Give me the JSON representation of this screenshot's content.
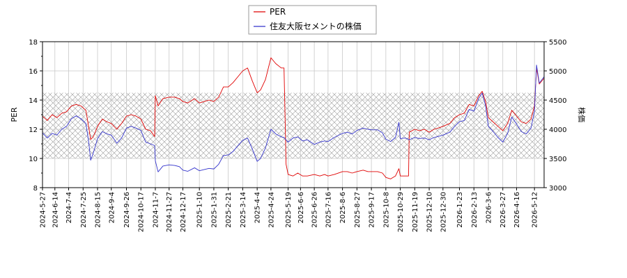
{
  "chart_data": {
    "type": "line",
    "title": "",
    "xlabel": "",
    "ylabel_left": "PER",
    "ylabel_right": "株価",
    "y_left_range": [
      8,
      18
    ],
    "y_left_ticks": [
      "8",
      "10",
      "12",
      "14",
      "16",
      "18"
    ],
    "y_right_range": [
      3000,
      5500
    ],
    "y_right_ticks": [
      "3000",
      "3500",
      "4000",
      "4500",
      "5000",
      "5500"
    ],
    "grid": true,
    "legend_position": "top-center",
    "shaded_band": {
      "axis": "left",
      "from": 10,
      "to": 14.5,
      "pattern": "crosshatch"
    },
    "x_range": [
      "2024-05-27",
      "2026-05-26"
    ],
    "x_ticks": [
      "2024-5-27",
      "2024-6-14",
      "2024-7-4",
      "2024-7-25",
      "2024-8-15",
      "2024-9-4",
      "2024-9-26",
      "2024-10-17",
      "2024-11-7",
      "2024-11-27",
      "2024-12-17",
      "2025-1-10",
      "2025-1-31",
      "2025-2-21",
      "2025-3-14",
      "2025-4-4",
      "2025-4-24",
      "2025-5-19",
      "2025-6-6",
      "2025-6-26",
      "2025-7-16",
      "2025-8-6",
      "2025-8-27",
      "2025-9-17",
      "2025-10-8",
      "2025-10-29",
      "2025-11-19",
      "2025-12-10",
      "2025-12-30",
      "2026-1-23",
      "2026-2-13",
      "2026-3-6",
      "2026-3-27",
      "2026-4-16",
      "2026-5-12"
    ],
    "series": [
      {
        "name": "PER",
        "axis": "left",
        "color": "#e00000",
        "points": [
          [
            "2024-05-27",
            12.9
          ],
          [
            "2024-06-03",
            12.6
          ],
          [
            "2024-06-10",
            13.0
          ],
          [
            "2024-06-17",
            12.8
          ],
          [
            "2024-06-24",
            13.1
          ],
          [
            "2024-07-01",
            13.2
          ],
          [
            "2024-07-08",
            13.6
          ],
          [
            "2024-07-15",
            13.7
          ],
          [
            "2024-07-22",
            13.6
          ],
          [
            "2024-07-29",
            13.3
          ],
          [
            "2024-08-02",
            12.2
          ],
          [
            "2024-08-05",
            11.3
          ],
          [
            "2024-08-09",
            11.5
          ],
          [
            "2024-08-15",
            12.2
          ],
          [
            "2024-08-22",
            12.7
          ],
          [
            "2024-08-29",
            12.5
          ],
          [
            "2024-09-04",
            12.4
          ],
          [
            "2024-09-12",
            12.0
          ],
          [
            "2024-09-19",
            12.4
          ],
          [
            "2024-09-26",
            12.9
          ],
          [
            "2024-10-03",
            13.0
          ],
          [
            "2024-10-10",
            12.9
          ],
          [
            "2024-10-17",
            12.7
          ],
          [
            "2024-10-24",
            12.0
          ],
          [
            "2024-10-31",
            11.9
          ],
          [
            "2024-11-06",
            11.5
          ],
          [
            "2024-11-07",
            14.3
          ],
          [
            "2024-11-11",
            13.6
          ],
          [
            "2024-11-18",
            14.1
          ],
          [
            "2024-11-27",
            14.2
          ],
          [
            "2024-12-05",
            14.2
          ],
          [
            "2024-12-12",
            14.1
          ],
          [
            "2024-12-17",
            13.9
          ],
          [
            "2024-12-24",
            13.8
          ],
          [
            "2025-01-03",
            14.1
          ],
          [
            "2025-01-10",
            13.8
          ],
          [
            "2025-01-17",
            13.9
          ],
          [
            "2025-01-24",
            14.0
          ],
          [
            "2025-01-31",
            13.9
          ],
          [
            "2025-02-07",
            14.2
          ],
          [
            "2025-02-14",
            14.9
          ],
          [
            "2025-02-21",
            14.9
          ],
          [
            "2025-02-28",
            15.2
          ],
          [
            "2025-03-07",
            15.6
          ],
          [
            "2025-03-14",
            16.0
          ],
          [
            "2025-03-21",
            16.2
          ],
          [
            "2025-03-28",
            15.3
          ],
          [
            "2025-04-04",
            14.5
          ],
          [
            "2025-04-09",
            14.7
          ],
          [
            "2025-04-16",
            15.4
          ],
          [
            "2025-04-24",
            16.9
          ],
          [
            "2025-05-01",
            16.5
          ],
          [
            "2025-05-09",
            16.2
          ],
          [
            "2025-05-13",
            16.2
          ],
          [
            "2025-05-16",
            9.6
          ],
          [
            "2025-05-19",
            8.9
          ],
          [
            "2025-05-26",
            8.8
          ],
          [
            "2025-06-02",
            9.0
          ],
          [
            "2025-06-09",
            8.8
          ],
          [
            "2025-06-16",
            8.8
          ],
          [
            "2025-06-26",
            8.9
          ],
          [
            "2025-07-04",
            8.8
          ],
          [
            "2025-07-11",
            8.9
          ],
          [
            "2025-07-16",
            8.8
          ],
          [
            "2025-07-25",
            8.9
          ],
          [
            "2025-08-06",
            9.1
          ],
          [
            "2025-08-13",
            9.1
          ],
          [
            "2025-08-20",
            9.0
          ],
          [
            "2025-08-27",
            9.1
          ],
          [
            "2025-09-05",
            9.2
          ],
          [
            "2025-09-12",
            9.1
          ],
          [
            "2025-09-17",
            9.1
          ],
          [
            "2025-09-26",
            9.1
          ],
          [
            "2025-10-03",
            9.0
          ],
          [
            "2025-10-08",
            8.7
          ],
          [
            "2025-10-15",
            8.6
          ],
          [
            "2025-10-22",
            8.8
          ],
          [
            "2025-10-27",
            9.3
          ],
          [
            "2025-10-29",
            8.8
          ],
          [
            "2025-11-05",
            8.8
          ],
          [
            "2025-11-10",
            8.8
          ],
          [
            "2025-11-11",
            11.8
          ],
          [
            "2025-11-19",
            12.0
          ],
          [
            "2025-11-26",
            11.9
          ],
          [
            "2025-12-03",
            12.0
          ],
          [
            "2025-12-10",
            11.8
          ],
          [
            "2025-12-17",
            12.0
          ],
          [
            "2025-12-24",
            12.1
          ],
          [
            "2025-12-30",
            12.2
          ],
          [
            "2026-01-09",
            12.4
          ],
          [
            "2026-01-16",
            12.8
          ],
          [
            "2026-01-23",
            13.0
          ],
          [
            "2026-01-30",
            13.1
          ],
          [
            "2026-02-06",
            13.7
          ],
          [
            "2026-02-13",
            13.6
          ],
          [
            "2026-02-20",
            14.3
          ],
          [
            "2026-02-25",
            14.6
          ],
          [
            "2026-03-02",
            13.9
          ],
          [
            "2026-03-06",
            12.8
          ],
          [
            "2026-03-13",
            12.5
          ],
          [
            "2026-03-20",
            12.2
          ],
          [
            "2026-03-27",
            11.9
          ],
          [
            "2026-04-03",
            12.4
          ],
          [
            "2026-04-09",
            13.3
          ],
          [
            "2026-04-16",
            12.9
          ],
          [
            "2026-04-23",
            12.5
          ],
          [
            "2026-04-30",
            12.4
          ],
          [
            "2026-05-07",
            12.7
          ],
          [
            "2026-05-12",
            13.6
          ],
          [
            "2026-05-15",
            16.2
          ],
          [
            "2026-05-19",
            15.1
          ],
          [
            "2026-05-26",
            15.5
          ]
        ]
      },
      {
        "name": "住友大阪セメントの株価",
        "axis": "right",
        "color": "#3333cc",
        "points": [
          [
            "2024-05-27",
            3940
          ],
          [
            "2024-06-03",
            3850
          ],
          [
            "2024-06-10",
            3930
          ],
          [
            "2024-06-17",
            3900
          ],
          [
            "2024-06-24",
            4000
          ],
          [
            "2024-07-01",
            4050
          ],
          [
            "2024-07-08",
            4180
          ],
          [
            "2024-07-15",
            4230
          ],
          [
            "2024-07-22",
            4180
          ],
          [
            "2024-07-29",
            4100
          ],
          [
            "2024-08-02",
            3800
          ],
          [
            "2024-08-05",
            3470
          ],
          [
            "2024-08-09",
            3600
          ],
          [
            "2024-08-15",
            3840
          ],
          [
            "2024-08-22",
            3960
          ],
          [
            "2024-08-29",
            3920
          ],
          [
            "2024-09-04",
            3900
          ],
          [
            "2024-09-12",
            3760
          ],
          [
            "2024-09-19",
            3850
          ],
          [
            "2024-09-26",
            4020
          ],
          [
            "2024-10-03",
            4050
          ],
          [
            "2024-10-10",
            4020
          ],
          [
            "2024-10-17",
            3980
          ],
          [
            "2024-10-24",
            3780
          ],
          [
            "2024-10-31",
            3750
          ],
          [
            "2024-11-06",
            3720
          ],
          [
            "2024-11-07",
            3460
          ],
          [
            "2024-11-11",
            3270
          ],
          [
            "2024-11-18",
            3370
          ],
          [
            "2024-11-27",
            3390
          ],
          [
            "2024-12-05",
            3380
          ],
          [
            "2024-12-12",
            3360
          ],
          [
            "2024-12-17",
            3300
          ],
          [
            "2024-12-24",
            3280
          ],
          [
            "2025-01-03",
            3340
          ],
          [
            "2025-01-10",
            3290
          ],
          [
            "2025-01-17",
            3310
          ],
          [
            "2025-01-24",
            3330
          ],
          [
            "2025-01-31",
            3320
          ],
          [
            "2025-02-07",
            3400
          ],
          [
            "2025-02-14",
            3550
          ],
          [
            "2025-02-21",
            3560
          ],
          [
            "2025-02-28",
            3620
          ],
          [
            "2025-03-07",
            3720
          ],
          [
            "2025-03-14",
            3810
          ],
          [
            "2025-03-21",
            3850
          ],
          [
            "2025-03-28",
            3660
          ],
          [
            "2025-04-04",
            3450
          ],
          [
            "2025-04-09",
            3500
          ],
          [
            "2025-04-16",
            3680
          ],
          [
            "2025-04-24",
            4000
          ],
          [
            "2025-05-01",
            3920
          ],
          [
            "2025-05-09",
            3870
          ],
          [
            "2025-05-13",
            3860
          ],
          [
            "2025-05-16",
            3820
          ],
          [
            "2025-05-19",
            3780
          ],
          [
            "2025-05-26",
            3850
          ],
          [
            "2025-06-02",
            3870
          ],
          [
            "2025-06-09",
            3800
          ],
          [
            "2025-06-16",
            3820
          ],
          [
            "2025-06-26",
            3740
          ],
          [
            "2025-07-04",
            3780
          ],
          [
            "2025-07-11",
            3800
          ],
          [
            "2025-07-16",
            3790
          ],
          [
            "2025-07-25",
            3860
          ],
          [
            "2025-08-06",
            3930
          ],
          [
            "2025-08-13",
            3950
          ],
          [
            "2025-08-20",
            3920
          ],
          [
            "2025-08-27",
            3980
          ],
          [
            "2025-09-05",
            4020
          ],
          [
            "2025-09-12",
            4000
          ],
          [
            "2025-09-17",
            3990
          ],
          [
            "2025-09-26",
            3990
          ],
          [
            "2025-10-03",
            3940
          ],
          [
            "2025-10-08",
            3830
          ],
          [
            "2025-10-15",
            3790
          ],
          [
            "2025-10-22",
            3860
          ],
          [
            "2025-10-27",
            4120
          ],
          [
            "2025-10-29",
            3840
          ],
          [
            "2025-11-05",
            3850
          ],
          [
            "2025-11-10",
            3830
          ],
          [
            "2025-11-11",
            3820
          ],
          [
            "2025-11-19",
            3860
          ],
          [
            "2025-11-26",
            3840
          ],
          [
            "2025-12-03",
            3850
          ],
          [
            "2025-12-10",
            3820
          ],
          [
            "2025-12-17",
            3860
          ],
          [
            "2025-12-24",
            3880
          ],
          [
            "2025-12-30",
            3900
          ],
          [
            "2026-01-09",
            3950
          ],
          [
            "2026-01-16",
            4050
          ],
          [
            "2026-01-23",
            4130
          ],
          [
            "2026-01-30",
            4150
          ],
          [
            "2026-02-06",
            4340
          ],
          [
            "2026-02-13",
            4310
          ],
          [
            "2026-02-20",
            4530
          ],
          [
            "2026-02-25",
            4620
          ],
          [
            "2026-03-02",
            4400
          ],
          [
            "2026-03-06",
            4050
          ],
          [
            "2026-03-13",
            3960
          ],
          [
            "2026-03-20",
            3860
          ],
          [
            "2026-03-27",
            3780
          ],
          [
            "2026-04-03",
            3930
          ],
          [
            "2026-04-09",
            4210
          ],
          [
            "2026-04-16",
            4090
          ],
          [
            "2026-04-23",
            3960
          ],
          [
            "2026-04-30",
            3920
          ],
          [
            "2026-05-07",
            4020
          ],
          [
            "2026-05-12",
            4310
          ],
          [
            "2026-05-15",
            5100
          ],
          [
            "2026-05-19",
            4790
          ],
          [
            "2026-05-26",
            4900
          ]
        ]
      }
    ]
  }
}
